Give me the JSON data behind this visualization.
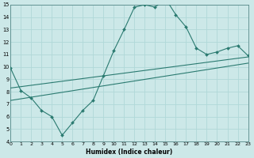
{
  "xlabel": "Humidex (Indice chaleur)",
  "x_min": 0,
  "x_max": 23,
  "y_min": 4,
  "y_max": 15,
  "background_color": "#cce8e8",
  "grid_color": "#b0d8d8",
  "line_color": "#2a7a70",
  "curve_x": [
    0,
    1,
    2,
    3,
    4,
    5,
    6,
    7,
    8,
    9,
    10,
    11,
    12,
    13,
    14,
    15,
    16,
    17,
    18,
    19,
    20,
    21,
    22,
    23
  ],
  "curve_y": [
    9.9,
    8.1,
    7.5,
    6.5,
    6.0,
    4.5,
    5.5,
    6.5,
    7.3,
    9.3,
    11.3,
    13.0,
    14.8,
    15.0,
    14.8,
    15.5,
    14.2,
    13.2,
    11.5,
    11.0,
    11.2,
    11.5,
    11.7,
    10.9
  ],
  "line1_x": [
    0,
    23
  ],
  "line1_y": [
    8.3,
    10.8
  ],
  "line2_x": [
    0,
    23
  ],
  "line2_y": [
    7.3,
    10.3
  ],
  "ytick_vals": [
    4,
    5,
    6,
    7,
    8,
    9,
    10,
    11,
    12,
    13,
    14,
    15
  ],
  "xtick_vals": [
    0,
    1,
    2,
    3,
    4,
    5,
    6,
    7,
    8,
    9,
    10,
    11,
    12,
    13,
    14,
    15,
    16,
    17,
    18,
    19,
    20,
    21,
    22,
    23
  ]
}
